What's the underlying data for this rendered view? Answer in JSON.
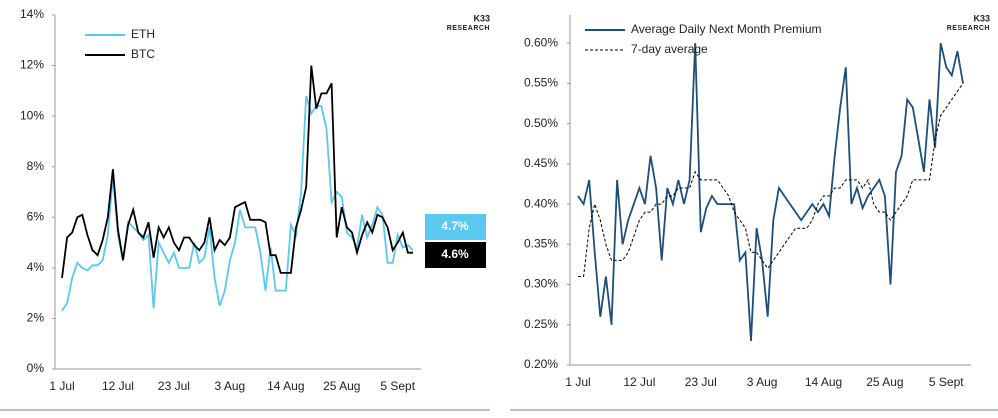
{
  "chart_data": [
    {
      "type": "line",
      "brand": {
        "name": "K33",
        "subtitle": "RESEARCH"
      },
      "categories": [
        "1 Jul",
        null,
        null,
        null,
        null,
        null,
        null,
        null,
        null,
        null,
        null,
        "12 Jul",
        null,
        null,
        null,
        null,
        null,
        null,
        null,
        null,
        null,
        null,
        "23 Jul",
        null,
        null,
        null,
        null,
        null,
        null,
        null,
        null,
        null,
        null,
        "3 Aug",
        null,
        null,
        null,
        null,
        null,
        null,
        null,
        null,
        null,
        null,
        "14 Aug",
        null,
        null,
        null,
        null,
        null,
        null,
        null,
        null,
        null,
        null,
        "25 Aug",
        null,
        null,
        null,
        null,
        null,
        null,
        null,
        null,
        null,
        null,
        "5 Sept",
        null,
        null,
        null
      ],
      "series": [
        {
          "name": "ETH",
          "color": "#5bc8f0",
          "values": [
            2.3,
            2.6,
            3.6,
            4.2,
            4.0,
            3.9,
            4.1,
            4.1,
            4.3,
            5.3,
            7.6,
            5.3,
            4.3,
            5.8,
            5.6,
            5.4,
            5.1,
            5.3,
            2.4,
            5.0,
            4.6,
            4.2,
            4.6,
            4.0,
            4.0,
            4.0,
            5.0,
            4.2,
            4.4,
            5.6,
            3.6,
            2.5,
            3.1,
            4.3,
            5.0,
            6.3,
            5.6,
            5.6,
            5.6,
            4.6,
            3.1,
            4.8,
            3.1,
            3.1,
            3.1,
            5.7,
            5.3,
            7.0,
            10.8,
            10.1,
            10.4,
            10.4,
            9.5,
            6.6,
            7.0,
            6.8,
            5.4,
            5.2,
            4.8,
            6.1,
            5.2,
            5.7,
            6.4,
            6.1,
            4.2,
            4.2,
            5.3,
            4.8,
            4.9,
            4.7
          ],
          "value_labels": [
            null,
            null,
            null,
            null,
            null,
            null,
            null,
            null,
            null,
            null,
            null,
            null,
            null,
            null,
            null,
            null,
            null,
            null,
            null,
            null,
            null,
            null,
            null,
            null,
            null,
            null,
            null,
            null,
            null,
            null,
            null,
            null,
            null,
            null,
            null,
            null,
            null,
            null,
            null,
            null,
            null,
            null,
            null,
            null,
            null,
            null,
            null,
            null,
            null,
            null,
            null,
            null,
            null,
            null,
            null,
            null,
            null,
            null,
            null,
            null,
            null,
            null,
            null,
            null,
            null,
            null,
            null,
            null,
            null,
            "4.7%"
          ]
        },
        {
          "name": "BTC",
          "color": "#000000",
          "values": [
            3.6,
            5.2,
            5.4,
            6.0,
            6.1,
            5.3,
            4.7,
            4.5,
            5.1,
            6.0,
            7.9,
            5.5,
            4.3,
            5.7,
            6.3,
            5.4,
            5.2,
            5.8,
            4.4,
            5.6,
            5.2,
            5.6,
            5.0,
            4.7,
            5.2,
            5.2,
            4.9,
            4.7,
            5.0,
            6.0,
            4.7,
            5.1,
            4.9,
            5.2,
            6.4,
            6.5,
            6.6,
            5.9,
            5.9,
            5.9,
            5.8,
            4.5,
            4.5,
            3.8,
            3.8,
            3.8,
            5.6,
            6.3,
            7.2,
            12.0,
            10.3,
            10.9,
            10.9,
            11.3,
            5.2,
            6.4,
            5.6,
            5.4,
            4.6,
            5.3,
            5.8,
            5.4,
            6.1,
            6.0,
            5.6,
            4.7,
            5.0,
            5.4,
            4.6,
            4.6
          ],
          "value_labels": [
            null,
            null,
            null,
            null,
            null,
            null,
            null,
            null,
            null,
            null,
            null,
            null,
            null,
            null,
            null,
            null,
            null,
            null,
            null,
            null,
            null,
            null,
            null,
            null,
            null,
            null,
            null,
            null,
            null,
            null,
            null,
            null,
            null,
            null,
            null,
            null,
            null,
            null,
            null,
            null,
            null,
            null,
            null,
            null,
            null,
            null,
            null,
            null,
            null,
            null,
            null,
            null,
            null,
            null,
            null,
            null,
            null,
            null,
            null,
            null,
            null,
            null,
            null,
            null,
            null,
            null,
            null,
            null,
            null,
            "4.6%"
          ]
        }
      ],
      "ylim": [
        0,
        14
      ],
      "yticks": [
        {
          "value": 0,
          "label": "0%"
        },
        {
          "value": 2,
          "label": "2%"
        },
        {
          "value": 4,
          "label": "4%"
        },
        {
          "value": 6,
          "label": "6%"
        },
        {
          "value": 8,
          "label": "8%"
        },
        {
          "value": 10,
          "label": "10%"
        },
        {
          "value": 12,
          "label": "12%"
        },
        {
          "value": 14,
          "label": "14%"
        }
      ],
      "grid": false
    },
    {
      "type": "line",
      "brand": {
        "name": "K33",
        "subtitle": "RESEARCH"
      },
      "categories": [
        "1 Jul",
        null,
        null,
        null,
        null,
        null,
        null,
        null,
        null,
        null,
        null,
        "12 Jul",
        null,
        null,
        null,
        null,
        null,
        null,
        null,
        null,
        null,
        null,
        "23 Jul",
        null,
        null,
        null,
        null,
        null,
        null,
        null,
        null,
        null,
        null,
        "3 Aug",
        null,
        null,
        null,
        null,
        null,
        null,
        null,
        null,
        null,
        null,
        "14 Aug",
        null,
        null,
        null,
        null,
        null,
        null,
        null,
        null,
        null,
        null,
        "25 Aug",
        null,
        null,
        null,
        null,
        null,
        null,
        null,
        null,
        null,
        null,
        "5 Sept",
        null,
        null,
        null
      ],
      "series": [
        {
          "name": "Average Daily Next Month Premium",
          "color": "#1f4e79",
          "dashed": false,
          "values": [
            0.41,
            0.4,
            0.43,
            0.34,
            0.26,
            0.31,
            0.25,
            0.43,
            0.35,
            0.38,
            0.4,
            0.42,
            0.4,
            0.46,
            0.42,
            0.33,
            0.42,
            0.4,
            0.43,
            0.4,
            0.43,
            0.6,
            0.365,
            0.395,
            0.41,
            0.4,
            0.4,
            0.4,
            0.4,
            0.33,
            0.34,
            0.23,
            0.37,
            0.33,
            0.26,
            0.38,
            0.42,
            0.41,
            0.4,
            0.39,
            0.38,
            0.39,
            0.4,
            0.39,
            0.4,
            0.385,
            0.46,
            0.52,
            0.57,
            0.4,
            0.42,
            0.395,
            0.41,
            0.42,
            0.43,
            0.41,
            0.3,
            0.44,
            0.46,
            0.53,
            0.52,
            0.48,
            0.44,
            0.53,
            0.47,
            0.6,
            0.57,
            0.56,
            0.59,
            0.55
          ]
        },
        {
          "name": "7-day average",
          "color": "#000000",
          "dashed": true,
          "values": [
            0.31,
            0.31,
            0.37,
            0.4,
            0.38,
            0.35,
            0.33,
            0.33,
            0.33,
            0.34,
            0.36,
            0.38,
            0.39,
            0.39,
            0.4,
            0.4,
            0.41,
            0.41,
            0.42,
            0.42,
            0.42,
            0.44,
            0.43,
            0.43,
            0.43,
            0.43,
            0.42,
            0.41,
            0.39,
            0.38,
            0.37,
            0.34,
            0.34,
            0.33,
            0.32,
            0.33,
            0.34,
            0.35,
            0.36,
            0.37,
            0.37,
            0.37,
            0.38,
            0.4,
            0.41,
            0.41,
            0.42,
            0.42,
            0.43,
            0.43,
            0.43,
            0.42,
            0.43,
            0.4,
            0.39,
            0.39,
            0.38,
            0.39,
            0.4,
            0.41,
            0.43,
            0.43,
            0.43,
            0.43,
            0.48,
            0.51,
            0.52,
            0.53,
            0.54,
            0.55
          ]
        }
      ],
      "ylim": [
        0.2,
        0.635
      ],
      "yticks": [
        {
          "value": 0.2,
          "label": "0.20%"
        },
        {
          "value": 0.25,
          "label": "0.25%"
        },
        {
          "value": 0.3,
          "label": "0.30%"
        },
        {
          "value": 0.35,
          "label": "0.35%"
        },
        {
          "value": 0.4,
          "label": "0.40%"
        },
        {
          "value": 0.45,
          "label": "0.45%"
        },
        {
          "value": 0.5,
          "label": "0.50%"
        },
        {
          "value": 0.55,
          "label": "0.55%"
        },
        {
          "value": 0.6,
          "label": "0.60%"
        }
      ],
      "grid": false
    }
  ]
}
